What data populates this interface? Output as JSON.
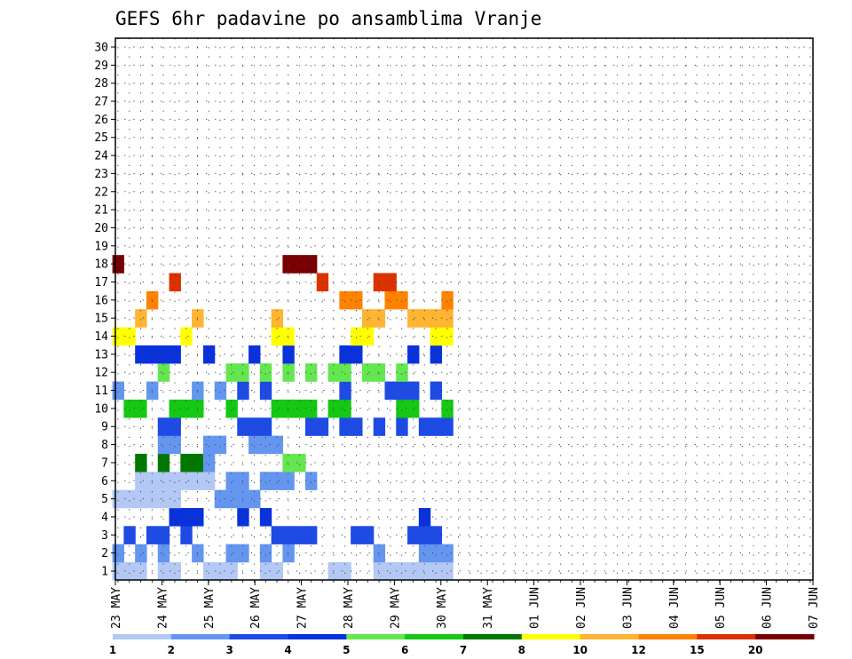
{
  "chart_data": {
    "type": "heatmap",
    "title": "GEFS 6hr padavine po ansamblima Vranje",
    "y_tick_labels": [
      "1",
      "2",
      "3",
      "4",
      "5",
      "6",
      "7",
      "8",
      "9",
      "10",
      "11",
      "12",
      "13",
      "14",
      "15",
      "16",
      "17",
      "18",
      "19",
      "20",
      "21",
      "22",
      "23",
      "24",
      "25",
      "26",
      "27",
      "28",
      "29",
      "30"
    ],
    "x_tick_labels": [
      "23 MAY",
      "24 MAY",
      "25 MAY",
      "26 MAY",
      "27 MAY",
      "28 MAY",
      "29 MAY",
      "30 MAY",
      "31 MAY",
      "01 JUN",
      "02 JUN",
      "03 JUN",
      "04 JUN",
      "05 JUN",
      "06 JUN",
      "07 JUN"
    ],
    "timesteps_per_day": 4,
    "colorbar": {
      "levels": [
        "1",
        "2",
        "3",
        "4",
        "5",
        "6",
        "7",
        "8",
        "10",
        "12",
        "15",
        "20"
      ],
      "colors": [
        "#b3c8f5",
        "#6496f0",
        "#1e4be6",
        "#0a32dc",
        "#64e650",
        "#14c814",
        "#007800",
        "#ffff00",
        "#ffb432",
        "#ff8200",
        "#dc3200",
        "#780000"
      ]
    },
    "grid": "dotted",
    "cells": [
      [
        1,
        0,
        1
      ],
      [
        1,
        1,
        1
      ],
      [
        1,
        2,
        1
      ],
      [
        1,
        4,
        1
      ],
      [
        1,
        5,
        1
      ],
      [
        1,
        8,
        1
      ],
      [
        1,
        9,
        1
      ],
      [
        1,
        10,
        1
      ],
      [
        1,
        13,
        1
      ],
      [
        1,
        14,
        1
      ],
      [
        1,
        19,
        1
      ],
      [
        1,
        20,
        1
      ],
      [
        1,
        23,
        1
      ],
      [
        1,
        24,
        1
      ],
      [
        1,
        25,
        1
      ],
      [
        1,
        26,
        1
      ],
      [
        1,
        27,
        1
      ],
      [
        1,
        28,
        1
      ],
      [
        1,
        29,
        1
      ],
      [
        2,
        0,
        2
      ],
      [
        2,
        2,
        2
      ],
      [
        2,
        4,
        2
      ],
      [
        2,
        7,
        2
      ],
      [
        2,
        10,
        2
      ],
      [
        2,
        11,
        2
      ],
      [
        2,
        13,
        2
      ],
      [
        2,
        15,
        2
      ],
      [
        2,
        23,
        2
      ],
      [
        2,
        27,
        2
      ],
      [
        2,
        28,
        2
      ],
      [
        2,
        29,
        2
      ],
      [
        3,
        1,
        3
      ],
      [
        3,
        3,
        3
      ],
      [
        3,
        4,
        3
      ],
      [
        3,
        6,
        3
      ],
      [
        3,
        14,
        3
      ],
      [
        3,
        15,
        3
      ],
      [
        3,
        16,
        3
      ],
      [
        3,
        17,
        3
      ],
      [
        3,
        21,
        3
      ],
      [
        3,
        22,
        3
      ],
      [
        3,
        26,
        3
      ],
      [
        3,
        27,
        3
      ],
      [
        3,
        28,
        3
      ],
      [
        4,
        5,
        4
      ],
      [
        4,
        6,
        4
      ],
      [
        4,
        7,
        4
      ],
      [
        4,
        11,
        4
      ],
      [
        4,
        13,
        4
      ],
      [
        4,
        27,
        4
      ],
      [
        5,
        0,
        1
      ],
      [
        5,
        1,
        1
      ],
      [
        5,
        2,
        1
      ],
      [
        5,
        3,
        1
      ],
      [
        5,
        4,
        1
      ],
      [
        5,
        5,
        1
      ],
      [
        5,
        9,
        2
      ],
      [
        5,
        10,
        2
      ],
      [
        5,
        11,
        2
      ],
      [
        5,
        12,
        2
      ],
      [
        6,
        2,
        1
      ],
      [
        6,
        3,
        1
      ],
      [
        6,
        4,
        1
      ],
      [
        6,
        5,
        1
      ],
      [
        6,
        6,
        1
      ],
      [
        6,
        7,
        1
      ],
      [
        6,
        8,
        1
      ],
      [
        6,
        10,
        2
      ],
      [
        6,
        11,
        2
      ],
      [
        6,
        13,
        2
      ],
      [
        6,
        14,
        2
      ],
      [
        6,
        15,
        2
      ],
      [
        6,
        17,
        2
      ],
      [
        7,
        2,
        7
      ],
      [
        7,
        4,
        7
      ],
      [
        7,
        6,
        7
      ],
      [
        7,
        7,
        7
      ],
      [
        7,
        8,
        2
      ],
      [
        7,
        15,
        5
      ],
      [
        7,
        16,
        5
      ],
      [
        8,
        4,
        2
      ],
      [
        8,
        5,
        2
      ],
      [
        8,
        8,
        2
      ],
      [
        8,
        9,
        2
      ],
      [
        8,
        12,
        2
      ],
      [
        8,
        13,
        2
      ],
      [
        8,
        14,
        2
      ],
      [
        9,
        4,
        3
      ],
      [
        9,
        5,
        3
      ],
      [
        9,
        11,
        3
      ],
      [
        9,
        12,
        3
      ],
      [
        9,
        13,
        3
      ],
      [
        9,
        17,
        3
      ],
      [
        9,
        18,
        3
      ],
      [
        9,
        20,
        3
      ],
      [
        9,
        21,
        3
      ],
      [
        9,
        23,
        3
      ],
      [
        9,
        25,
        3
      ],
      [
        9,
        27,
        3
      ],
      [
        9,
        28,
        3
      ],
      [
        9,
        29,
        3
      ],
      [
        10,
        1,
        6
      ],
      [
        10,
        2,
        6
      ],
      [
        10,
        5,
        6
      ],
      [
        10,
        6,
        6
      ],
      [
        10,
        7,
        6
      ],
      [
        10,
        10,
        6
      ],
      [
        10,
        14,
        6
      ],
      [
        10,
        15,
        6
      ],
      [
        10,
        16,
        6
      ],
      [
        10,
        17,
        6
      ],
      [
        10,
        19,
        6
      ],
      [
        10,
        20,
        6
      ],
      [
        10,
        25,
        6
      ],
      [
        10,
        26,
        6
      ],
      [
        10,
        29,
        6
      ],
      [
        11,
        0,
        2
      ],
      [
        11,
        3,
        2
      ],
      [
        11,
        7,
        2
      ],
      [
        11,
        9,
        2
      ],
      [
        11,
        11,
        3
      ],
      [
        11,
        13,
        3
      ],
      [
        11,
        20,
        3
      ],
      [
        11,
        24,
        3
      ],
      [
        11,
        25,
        3
      ],
      [
        11,
        26,
        3
      ],
      [
        11,
        28,
        3
      ],
      [
        12,
        4,
        5
      ],
      [
        12,
        10,
        5
      ],
      [
        12,
        11,
        5
      ],
      [
        12,
        13,
        5
      ],
      [
        12,
        15,
        5
      ],
      [
        12,
        17,
        5
      ],
      [
        12,
        19,
        5
      ],
      [
        12,
        20,
        5
      ],
      [
        12,
        22,
        5
      ],
      [
        12,
        23,
        5
      ],
      [
        12,
        25,
        5
      ],
      [
        13,
        2,
        4
      ],
      [
        13,
        3,
        4
      ],
      [
        13,
        4,
        4
      ],
      [
        13,
        5,
        4
      ],
      [
        13,
        8,
        4
      ],
      [
        13,
        12,
        4
      ],
      [
        13,
        15,
        4
      ],
      [
        13,
        20,
        4
      ],
      [
        13,
        21,
        4
      ],
      [
        13,
        26,
        4
      ],
      [
        13,
        28,
        4
      ],
      [
        14,
        0,
        8
      ],
      [
        14,
        1,
        8
      ],
      [
        14,
        6,
        8
      ],
      [
        14,
        14,
        8
      ],
      [
        14,
        15,
        8
      ],
      [
        14,
        21,
        8
      ],
      [
        14,
        22,
        8
      ],
      [
        14,
        28,
        8
      ],
      [
        14,
        29,
        8
      ],
      [
        15,
        2,
        9
      ],
      [
        15,
        7,
        9
      ],
      [
        15,
        14,
        9
      ],
      [
        15,
        22,
        9
      ],
      [
        15,
        23,
        9
      ],
      [
        15,
        26,
        9
      ],
      [
        15,
        27,
        9
      ],
      [
        15,
        28,
        9
      ],
      [
        15,
        29,
        9
      ],
      [
        16,
        3,
        10
      ],
      [
        16,
        20,
        10
      ],
      [
        16,
        21,
        10
      ],
      [
        16,
        24,
        10
      ],
      [
        16,
        25,
        10
      ],
      [
        16,
        29,
        10
      ],
      [
        17,
        5,
        11
      ],
      [
        17,
        18,
        11
      ],
      [
        17,
        23,
        11
      ],
      [
        17,
        24,
        11
      ],
      [
        18,
        0,
        12
      ],
      [
        18,
        15,
        12
      ],
      [
        18,
        16,
        12
      ],
      [
        18,
        17,
        12
      ]
    ]
  }
}
